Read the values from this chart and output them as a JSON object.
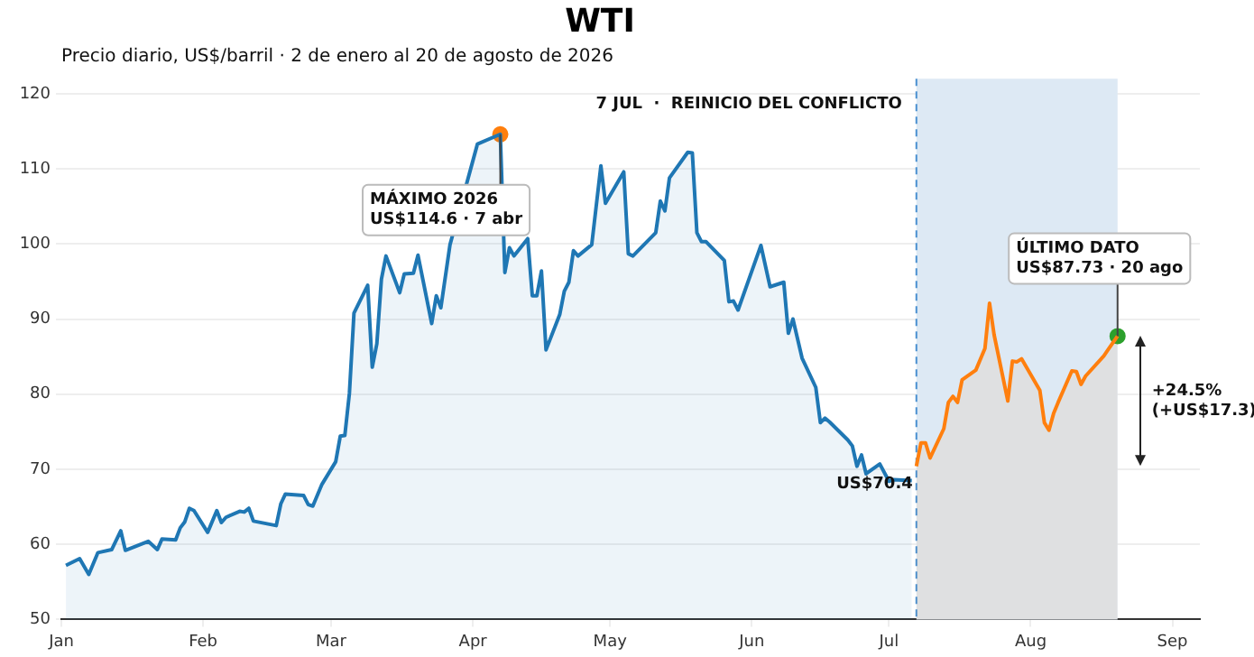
{
  "chart_data": {
    "type": "area",
    "title": "WTI",
    "subtitle": "Precio diario, US$/barril · 2 de enero al 20 de agosto de 2026",
    "series": [
      {
        "color": "#1f77b4",
        "x": [
          "2026-01-02",
          "2026-01-05",
          "2026-01-07",
          "2026-01-09",
          "2026-01-12",
          "2026-01-14",
          "2026-01-15",
          "2026-01-20",
          "2026-01-22",
          "2026-01-23",
          "2026-01-26",
          "2026-01-27",
          "2026-01-28",
          "2026-01-29",
          "2026-01-30",
          "2026-02-02",
          "2026-02-04",
          "2026-02-05",
          "2026-02-06",
          "2026-02-09",
          "2026-02-10",
          "2026-02-11",
          "2026-02-12",
          "2026-02-17",
          "2026-02-18",
          "2026-02-19",
          "2026-02-23",
          "2026-02-24",
          "2026-02-25",
          "2026-02-27",
          "2026-03-02",
          "2026-03-03",
          "2026-03-04",
          "2026-03-05",
          "2026-03-06",
          "2026-03-09",
          "2026-03-10",
          "2026-03-11",
          "2026-03-12",
          "2026-03-13",
          "2026-03-16",
          "2026-03-17",
          "2026-03-19",
          "2026-03-20",
          "2026-03-23",
          "2026-03-24",
          "2026-03-25",
          "2026-03-27",
          "2026-04-02",
          "2026-04-07",
          "2026-04-08",
          "2026-04-09",
          "2026-04-10",
          "2026-04-13",
          "2026-04-14",
          "2026-04-15",
          "2026-04-16",
          "2026-04-17",
          "2026-04-20",
          "2026-04-21",
          "2026-04-22",
          "2026-04-23",
          "2026-04-24",
          "2026-04-27",
          "2026-04-29",
          "2026-04-30",
          "2026-05-04",
          "2026-05-05",
          "2026-05-06",
          "2026-05-11",
          "2026-05-12",
          "2026-05-13",
          "2026-05-14",
          "2026-05-18",
          "2026-05-19",
          "2026-05-20",
          "2026-05-21",
          "2026-05-22",
          "2026-05-26",
          "2026-05-27",
          "2026-05-28",
          "2026-05-29",
          "2026-06-03",
          "2026-06-05",
          "2026-06-08",
          "2026-06-09",
          "2026-06-10",
          "2026-06-12",
          "2026-06-15",
          "2026-06-16",
          "2026-06-17",
          "2026-06-18",
          "2026-06-22",
          "2026-06-23",
          "2026-06-24",
          "2026-06-25",
          "2026-06-26",
          "2026-06-29",
          "2026-07-01",
          "2026-07-02",
          "2026-07-06"
        ],
        "values": [
          57.2,
          58.1,
          56.0,
          58.9,
          59.3,
          61.8,
          59.2,
          60.4,
          59.3,
          60.7,
          60.6,
          62.2,
          63.0,
          64.8,
          64.5,
          61.6,
          64.5,
          62.9,
          63.6,
          64.4,
          64.3,
          64.8,
          63.1,
          62.5,
          65.4,
          66.7,
          66.5,
          65.3,
          65.1,
          68.0,
          71.0,
          74.4,
          74.5,
          80.1,
          90.8,
          94.5,
          83.6,
          86.7,
          95.3,
          98.4,
          93.5,
          96.0,
          96.1,
          98.5,
          89.4,
          93.1,
          91.5,
          99.9,
          113.3,
          114.6,
          96.2,
          99.5,
          98.4,
          100.7,
          93.1,
          93.1,
          96.4,
          85.9,
          90.6,
          93.7,
          94.9,
          99.1,
          98.4,
          99.9,
          110.4,
          105.4,
          109.6,
          98.7,
          98.4,
          101.5,
          105.7,
          104.4,
          108.8,
          112.2,
          112.1,
          101.5,
          100.3,
          100.3,
          97.8,
          92.3,
          92.4,
          91.2,
          99.8,
          94.3,
          94.9,
          88.1,
          90.0,
          84.8,
          80.9,
          76.2,
          76.8,
          76.3,
          73.9,
          73.1,
          70.4,
          71.9,
          69.4,
          70.7,
          68.4,
          68.6,
          68.5
        ]
      },
      {
        "color": "#ff7f0e",
        "x": [
          "2026-07-07",
          "2026-07-08",
          "2026-07-09",
          "2026-07-10",
          "2026-07-13",
          "2026-07-14",
          "2026-07-15",
          "2026-07-16",
          "2026-07-17",
          "2026-07-20",
          "2026-07-22",
          "2026-07-23",
          "2026-07-24",
          "2026-07-27",
          "2026-07-28",
          "2026-07-29",
          "2026-07-30",
          "2026-08-03",
          "2026-08-04",
          "2026-08-05",
          "2026-08-06",
          "2026-08-07",
          "2026-08-10",
          "2026-08-11",
          "2026-08-12",
          "2026-08-13",
          "2026-08-17",
          "2026-08-18",
          "2026-08-20"
        ],
        "values": [
          70.4,
          73.5,
          73.5,
          71.5,
          75.4,
          78.9,
          79.7,
          78.9,
          81.9,
          83.2,
          86.1,
          92.1,
          87.9,
          79.1,
          84.4,
          84.3,
          84.7,
          80.5,
          76.2,
          75.2,
          77.4,
          78.9,
          83.1,
          83.0,
          81.3,
          82.4,
          85.1,
          86.0,
          87.73
        ]
      },
      {
        "type": "scatter",
        "marker": "circle",
        "color": "#ff7f0e",
        "x": [
          "2026-04-07"
        ],
        "values": [
          114.6
        ]
      },
      {
        "type": "scatter",
        "marker": "circle",
        "color": "#2ca02c",
        "x": [
          "2026-08-20"
        ],
        "values": [
          87.73
        ]
      }
    ],
    "xlim": [
      "2026-01-01",
      "2026-09-07"
    ],
    "xticks": [
      {
        "value": "2026-01-01",
        "label": "Jan"
      },
      {
        "value": "2026-02-01",
        "label": "Feb"
      },
      {
        "value": "2026-03-01",
        "label": "Mar"
      },
      {
        "value": "2026-04-01",
        "label": "Apr"
      },
      {
        "value": "2026-05-01",
        "label": "May"
      },
      {
        "value": "2026-06-01",
        "label": "Jun"
      },
      {
        "value": "2026-07-01",
        "label": "Jul"
      },
      {
        "value": "2026-08-01",
        "label": "Aug"
      },
      {
        "value": "2026-09-01",
        "label": "Sep"
      }
    ],
    "ylim": [
      50,
      122
    ],
    "yticks": [
      50,
      60,
      70,
      80,
      90,
      100,
      110,
      120
    ],
    "grid": "y",
    "ref_lines": [
      {
        "axis": "x",
        "value": "2026-07-07",
        "label": "7 JUL  ·  REINICIO DEL CONFLICTO",
        "color": "#4a90d0",
        "line_style": "dashed"
      }
    ],
    "bands": [
      {
        "axis": "x",
        "from": "2026-07-07",
        "to": "2026-08-20",
        "color": "#dde9f4"
      }
    ],
    "annotations": [
      {
        "text": "MÁXIMO 2026\nUS$114.6 · 7 abr",
        "x": "2026-04-07",
        "y": 114.6
      },
      {
        "text": "ÚLTIMO DATO\nUS$87.73 · 20 ago",
        "x": "2026-08-20",
        "y": 87.73
      },
      {
        "text": "US$70.4",
        "x": "2026-07-07",
        "y": 70.4
      },
      "+24.5%\n(+US$17.3)"
    ]
  }
}
